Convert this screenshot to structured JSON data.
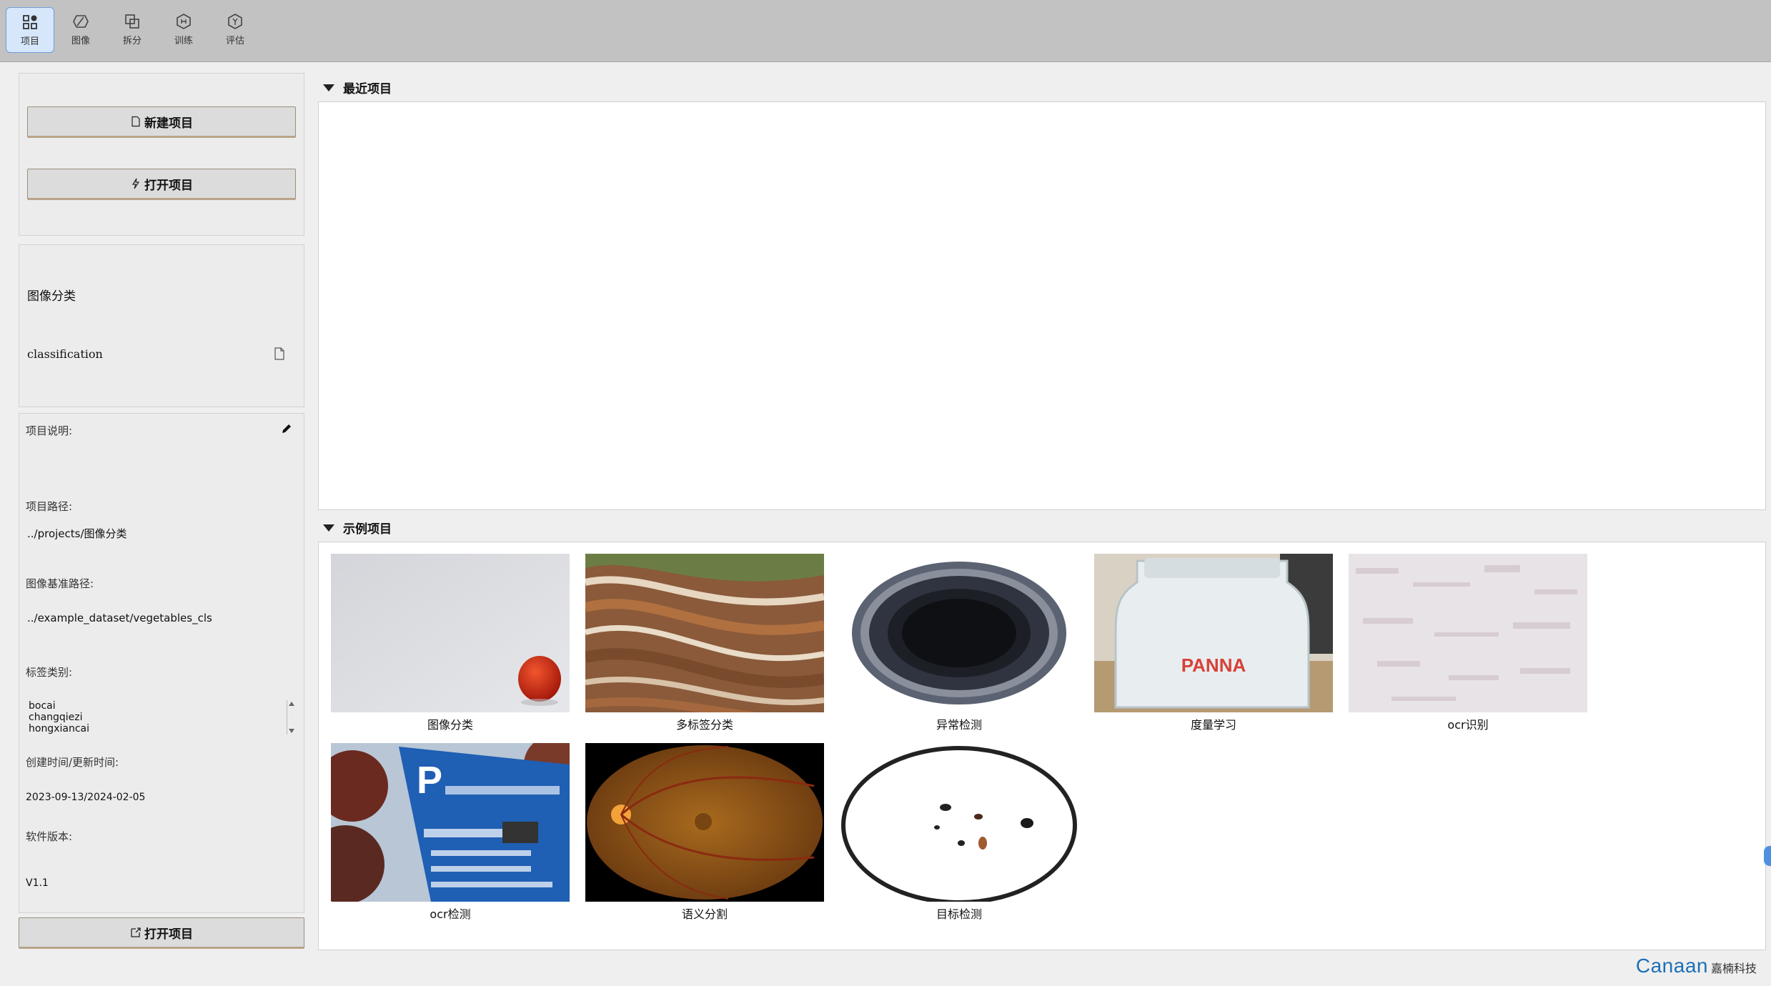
{
  "toolbar": {
    "items": [
      {
        "label": "项目",
        "icon": "grid-icon"
      },
      {
        "label": "图像",
        "icon": "image-icon"
      },
      {
        "label": "拆分",
        "icon": "split-icon"
      },
      {
        "label": "训练",
        "icon": "train-icon"
      },
      {
        "label": "评估",
        "icon": "evaluate-icon"
      }
    ]
  },
  "left": {
    "new_project": "新建项目",
    "open_project": "打开项目",
    "project_type_cn": "图像分类",
    "project_type_en": "classification",
    "desc_label": "项目说明:",
    "path_label": "项目路径:",
    "path_value": "../projects/图像分类",
    "image_base_label": "图像基准路径:",
    "image_base_value": "../example_dataset/vegetables_cls",
    "labels_label": "标签类别:",
    "labels": [
      "bocai",
      "changqiezi",
      "hongxiancai"
    ],
    "time_label": "创建时间/更新时间:",
    "time_value": "2023-09-13/2024-02-05",
    "version_label": "软件版本:",
    "version_value": "V1.1",
    "open_bottom": "打开项目"
  },
  "recent": {
    "title": "最近项目"
  },
  "examples": {
    "title": "示例项目",
    "items": [
      {
        "label": "图像分类"
      },
      {
        "label": "多标签分类"
      },
      {
        "label": "异常检测"
      },
      {
        "label": "度量学习"
      },
      {
        "label": "ocr识别"
      },
      {
        "label": "ocr检测"
      },
      {
        "label": "语义分割"
      },
      {
        "label": "目标检测"
      }
    ]
  },
  "brand": {
    "en": "Canaan",
    "cn": "嘉楠科技"
  }
}
